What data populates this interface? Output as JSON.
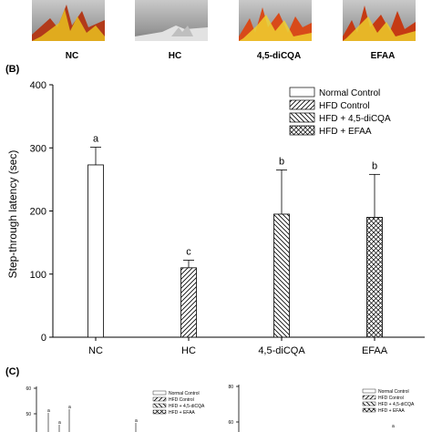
{
  "panel_a": {
    "group_labels": [
      "NC",
      "HC",
      "4,5-diCQA",
      "EFAA"
    ]
  },
  "panel_b": {
    "letter": "(B)"
  },
  "panel_c": {
    "letter": "(C)",
    "left_y_ticks": [
      "60",
      "50"
    ],
    "right_y_ticks": [
      "80",
      "60"
    ],
    "legend": [
      "Normal Control",
      "HFD Control",
      "HFD + 4,5-diCQA",
      "HFD + EFAA"
    ],
    "sig_letters": [
      "a",
      "a",
      "a",
      "a",
      "a"
    ]
  },
  "chart_data": {
    "type": "bar",
    "ylabel": "Step-through latency (sec)",
    "xlabel": "",
    "ylim": [
      0,
      400
    ],
    "yticks": [
      0,
      100,
      200,
      300,
      400
    ],
    "categories": [
      "NC",
      "HC",
      "4,5-diCQA",
      "EFAA"
    ],
    "values": [
      273,
      110,
      195,
      190
    ],
    "errors": [
      28,
      12,
      70,
      68
    ],
    "significance": [
      "a",
      "c",
      "b",
      "b"
    ],
    "legend": [
      "Normal Control",
      "HFD Control",
      "HFD + 4,5-diCQA",
      "HFD + EFAA"
    ],
    "legend_position": "top-right",
    "grid": false,
    "fills": [
      "white",
      "diagonal-hatch",
      "back-diagonal-hatch",
      "cross-hatch"
    ]
  }
}
